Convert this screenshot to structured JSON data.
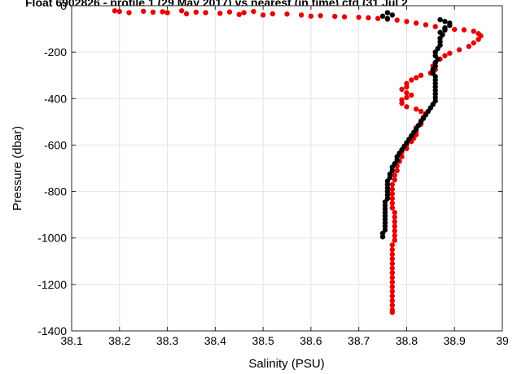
{
  "chart_data": {
    "type": "scatter",
    "title": "Float 6902826 - profile 1 (29 May 2017) vs nearest (in time) ctd (31 Jul 2",
    "xlabel": "Salinity (PSU)",
    "ylabel": "Pressure (dbar)",
    "xlim": [
      38.1,
      39.0
    ],
    "ylim": [
      -1400,
      0
    ],
    "xticks": [
      "38.1",
      "38.2",
      "38.3",
      "38.4",
      "38.5",
      "38.6",
      "38.7",
      "38.8",
      "38.9",
      "39"
    ],
    "yticks": [
      "0",
      "-200",
      "-400",
      "-600",
      "-800",
      "-1000",
      "-1200",
      "-1400"
    ],
    "grid": true,
    "series": [
      {
        "color": "#e60000",
        "points": [
          [
            38.19,
            -22
          ],
          [
            38.2,
            -25
          ],
          [
            38.22,
            -30
          ],
          [
            38.25,
            -24
          ],
          [
            38.27,
            -28
          ],
          [
            38.29,
            -26
          ],
          [
            38.3,
            -30
          ],
          [
            38.33,
            -22
          ],
          [
            38.34,
            -35
          ],
          [
            38.36,
            -28
          ],
          [
            38.38,
            -30
          ],
          [
            38.41,
            -33
          ],
          [
            38.43,
            -27
          ],
          [
            38.45,
            -38
          ],
          [
            38.46,
            -30
          ],
          [
            38.48,
            -25
          ],
          [
            38.5,
            -40
          ],
          [
            38.52,
            -35
          ],
          [
            38.55,
            -36
          ],
          [
            38.58,
            -40
          ],
          [
            38.6,
            -45
          ],
          [
            38.62,
            -43
          ],
          [
            38.65,
            -46
          ],
          [
            38.67,
            -48
          ],
          [
            38.7,
            -50
          ],
          [
            38.72,
            -52
          ],
          [
            38.74,
            -55
          ],
          [
            38.76,
            -58
          ],
          [
            38.78,
            -62
          ],
          [
            38.8,
            -68
          ],
          [
            38.82,
            -75
          ],
          [
            38.84,
            -82
          ],
          [
            38.86,
            -90
          ],
          [
            38.88,
            -98
          ],
          [
            38.9,
            -102
          ],
          [
            38.92,
            -104
          ],
          [
            38.94,
            -110
          ],
          [
            38.95,
            -120
          ],
          [
            38.955,
            -130
          ],
          [
            38.95,
            -145
          ],
          [
            38.94,
            -160
          ],
          [
            38.93,
            -175
          ],
          [
            38.91,
            -190
          ],
          [
            38.89,
            -205
          ],
          [
            38.88,
            -215
          ],
          [
            38.87,
            -230
          ],
          [
            38.86,
            -245
          ],
          [
            38.855,
            -260
          ],
          [
            38.86,
            -275
          ],
          [
            38.85,
            -290
          ],
          [
            38.83,
            -300
          ],
          [
            38.82,
            -310
          ],
          [
            38.81,
            -320
          ],
          [
            38.8,
            -335
          ],
          [
            38.8,
            -350
          ],
          [
            38.79,
            -360
          ],
          [
            38.8,
            -375
          ],
          [
            38.81,
            -385
          ],
          [
            38.8,
            -395
          ],
          [
            38.79,
            -405
          ],
          [
            38.79,
            -420
          ],
          [
            38.8,
            -435
          ],
          [
            38.82,
            -445
          ],
          [
            38.83,
            -455
          ],
          [
            38.84,
            -465
          ],
          [
            38.835,
            -480
          ],
          [
            38.83,
            -495
          ],
          [
            38.83,
            -510
          ],
          [
            38.82,
            -525
          ],
          [
            38.82,
            -540
          ],
          [
            38.82,
            -555
          ],
          [
            38.815,
            -570
          ],
          [
            38.81,
            -585
          ],
          [
            38.8,
            -600
          ],
          [
            38.8,
            -615
          ],
          [
            38.79,
            -630
          ],
          [
            38.79,
            -650
          ],
          [
            38.785,
            -670
          ],
          [
            38.78,
            -690
          ],
          [
            38.78,
            -710
          ],
          [
            38.775,
            -730
          ],
          [
            38.775,
            -750
          ],
          [
            38.77,
            -770
          ],
          [
            38.77,
            -790
          ],
          [
            38.77,
            -810
          ],
          [
            38.77,
            -830
          ],
          [
            38.77,
            -850
          ],
          [
            38.77,
            -870
          ],
          [
            38.775,
            -890
          ],
          [
            38.775,
            -910
          ],
          [
            38.775,
            -930
          ],
          [
            38.775,
            -950
          ],
          [
            38.775,
            -970
          ],
          [
            38.775,
            -990
          ],
          [
            38.775,
            -1010
          ],
          [
            38.77,
            -1030
          ],
          [
            38.77,
            -1050
          ],
          [
            38.77,
            -1070
          ],
          [
            38.77,
            -1090
          ],
          [
            38.77,
            -1110
          ],
          [
            38.77,
            -1130
          ],
          [
            38.77,
            -1150
          ],
          [
            38.77,
            -1170
          ],
          [
            38.77,
            -1190
          ],
          [
            38.77,
            -1210
          ],
          [
            38.77,
            -1230
          ],
          [
            38.77,
            -1250
          ],
          [
            38.77,
            -1270
          ],
          [
            38.77,
            -1290
          ],
          [
            38.77,
            -1310
          ],
          [
            38.77,
            -1320
          ]
        ]
      },
      {
        "color": "#000000",
        "points": [
          [
            38.76,
            -30
          ],
          [
            38.75,
            -45
          ],
          [
            38.76,
            -55
          ],
          [
            38.77,
            -40
          ],
          [
            38.87,
            -60
          ],
          [
            38.88,
            -68
          ],
          [
            38.89,
            -75
          ],
          [
            38.89,
            -85
          ],
          [
            38.88,
            -95
          ],
          [
            38.88,
            -105
          ],
          [
            38.87,
            -115
          ],
          [
            38.875,
            -125
          ],
          [
            38.87,
            -140
          ],
          [
            38.87,
            -155
          ],
          [
            38.87,
            -170
          ],
          [
            38.865,
            -185
          ],
          [
            38.86,
            -200
          ],
          [
            38.86,
            -215
          ],
          [
            38.865,
            -230
          ],
          [
            38.86,
            -245
          ],
          [
            38.86,
            -260
          ],
          [
            38.855,
            -275
          ],
          [
            38.855,
            -290
          ],
          [
            38.86,
            -305
          ],
          [
            38.86,
            -320
          ],
          [
            38.86,
            -335
          ],
          [
            38.86,
            -350
          ],
          [
            38.86,
            -365
          ],
          [
            38.86,
            -380
          ],
          [
            38.86,
            -395
          ],
          [
            38.86,
            -410
          ],
          [
            38.855,
            -425
          ],
          [
            38.85,
            -440
          ],
          [
            38.845,
            -455
          ],
          [
            38.84,
            -470
          ],
          [
            38.835,
            -485
          ],
          [
            38.83,
            -500
          ],
          [
            38.825,
            -515
          ],
          [
            38.82,
            -530
          ],
          [
            38.815,
            -545
          ],
          [
            38.81,
            -560
          ],
          [
            38.805,
            -575
          ],
          [
            38.8,
            -590
          ],
          [
            38.795,
            -605
          ],
          [
            38.79,
            -620
          ],
          [
            38.785,
            -635
          ],
          [
            38.78,
            -650
          ],
          [
            38.78,
            -665
          ],
          [
            38.775,
            -680
          ],
          [
            38.77,
            -695
          ],
          [
            38.77,
            -710
          ],
          [
            38.765,
            -725
          ],
          [
            38.765,
            -740
          ],
          [
            38.76,
            -755
          ],
          [
            38.76,
            -770
          ],
          [
            38.76,
            -785
          ],
          [
            38.76,
            -800
          ],
          [
            38.76,
            -815
          ],
          [
            38.76,
            -830
          ],
          [
            38.755,
            -845
          ],
          [
            38.755,
            -860
          ],
          [
            38.755,
            -875
          ],
          [
            38.755,
            -890
          ],
          [
            38.755,
            -905
          ],
          [
            38.755,
            -920
          ],
          [
            38.755,
            -935
          ],
          [
            38.755,
            -950
          ],
          [
            38.755,
            -965
          ],
          [
            38.75,
            -980
          ],
          [
            38.75,
            -995
          ]
        ]
      }
    ]
  }
}
